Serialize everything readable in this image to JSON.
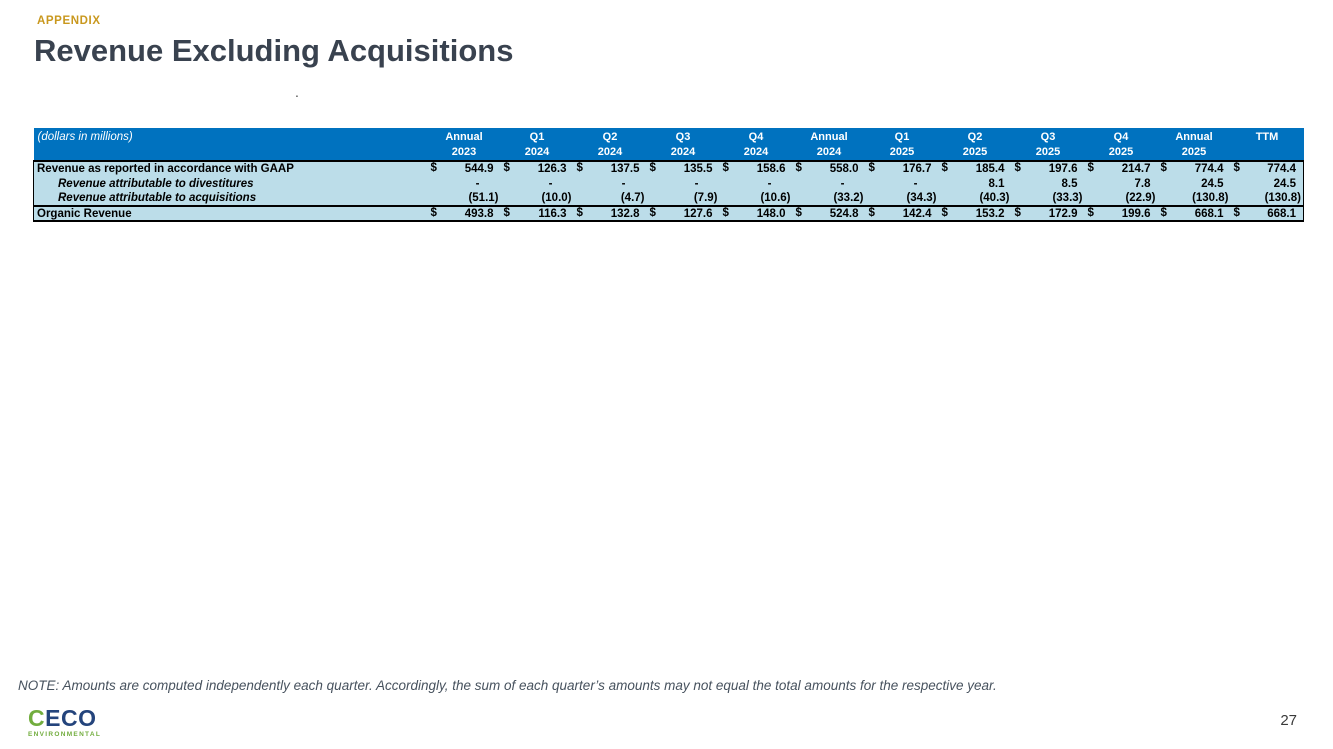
{
  "slide": {
    "appendix_label": "APPENDIX",
    "title": "Revenue Excluding Acquisitions",
    "stray_mark": ".",
    "note": "NOTE: Amounts are computed independently each quarter. Accordingly, the sum of each quarter’s amounts may not equal the total amounts for the respective year.",
    "page_number": "27"
  },
  "logo": {
    "first_letter": "C",
    "rest": "ECO",
    "subtitle": "ENVIRONMENTAL"
  },
  "colors": {
    "header_blue": "#0072BF",
    "body_light_blue": "#BCDDE9",
    "appendix_gold": "#C9981E",
    "title_dark_slate": "#39424F",
    "logo_green": "#72AD3E",
    "logo_navy": "#24447C"
  },
  "table": {
    "units_label": "(dollars in millions)",
    "columns": [
      {
        "line1": "Annual",
        "line2": "2023"
      },
      {
        "line1": "Q1",
        "line2": "2024"
      },
      {
        "line1": "Q2",
        "line2": "2024"
      },
      {
        "line1": "Q3",
        "line2": "2024"
      },
      {
        "line1": "Q4",
        "line2": "2024"
      },
      {
        "line1": "Annual",
        "line2": "2024"
      },
      {
        "line1": "Q1",
        "line2": "2025"
      },
      {
        "line1": "Q2",
        "line2": "2025"
      },
      {
        "line1": "Q3",
        "line2": "2025"
      },
      {
        "line1": "Q4",
        "line2": "2025"
      },
      {
        "line1": "Annual",
        "line2": "2025"
      },
      {
        "line1": "",
        "line2": "TTM"
      }
    ],
    "rows": [
      {
        "label": "Revenue as reported in accordance with GAAP",
        "style": "plain",
        "show_dollar": true,
        "values": [
          "544.9",
          "126.3",
          "137.5",
          "135.5",
          "158.6",
          "558.0",
          "176.7",
          "185.4",
          "197.6",
          "214.7",
          "774.4",
          "774.4"
        ]
      },
      {
        "label": "Revenue attributable to divestitures",
        "style": "indent-italic",
        "show_dollar": false,
        "values": [
          "-",
          "-",
          "-",
          "-",
          "-",
          "-",
          "-",
          "8.1",
          "8.5",
          "7.8",
          "24.5",
          "24.5"
        ]
      },
      {
        "label": "Revenue attributable to acquisitions",
        "style": "indent-italic",
        "show_dollar": false,
        "values": [
          "(51.1)",
          "(10.0)",
          "(4.7)",
          "(7.9)",
          "(10.6)",
          "(33.2)",
          "(34.3)",
          "(40.3)",
          "(33.3)",
          "(22.9)",
          "(130.8)",
          "(130.8)"
        ]
      },
      {
        "label": "Organic Revenue",
        "style": "total",
        "show_dollar": true,
        "values": [
          "493.8",
          "116.3",
          "132.8",
          "127.6",
          "148.0",
          "524.8",
          "142.4",
          "153.2",
          "172.9",
          "199.6",
          "668.1",
          "668.1"
        ]
      }
    ]
  }
}
